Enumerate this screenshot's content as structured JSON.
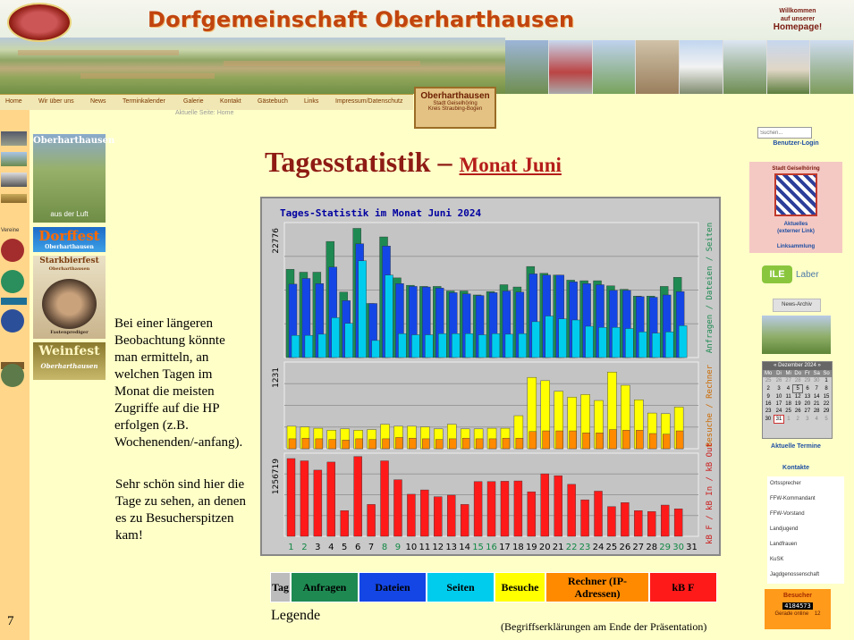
{
  "header": {
    "title": "Dorfgemeinschaft Oberharthausen",
    "welcome_line1": "Willkommen",
    "welcome_line2": "auf unserer",
    "welcome_line3": "Homepage!",
    "logo_text": "Dorfgemeinschaft Oberharthausen"
  },
  "nav": {
    "items": [
      "Home",
      "Wir über uns",
      "News",
      "Terminkalender",
      "Galerie",
      "Kontakt",
      "Gästebuch",
      "Links",
      "Impressum/Datenschutz"
    ],
    "breadcrumb": "Aktuelle Seite: Home"
  },
  "badge": {
    "name": "Oberharthausen",
    "line2": "Stadt Geiselhöring",
    "line3": "Kreis Straubing-Bogen"
  },
  "left_sidebar": {
    "label": "Vereine"
  },
  "banners": {
    "luft_title": "Oberharthausen",
    "luft_sub": "aus der Luft",
    "dorffest": "Dorffest",
    "dorffest_sub": "Oberharthausen",
    "starkbier": "Starkbierfest",
    "starkbier_sub": "Oberharthausen",
    "fasten": "Fastenprediger",
    "weinfest": "Weinfest",
    "weinfest_sub": "Oberharthausen"
  },
  "slide": {
    "heading": "Tagesstatistik –",
    "heading_sub": "Monat Juni",
    "para1": [
      "Bei einer längeren",
      "Beobachtung könnte",
      "man ermitteln, an",
      "welchen Tagen im",
      "Monat die meisten",
      "Zugriffe auf die HP",
      "erfolgen (z.B.",
      "Wochenenden/-anfang)."
    ],
    "para2": [
      "Sehr schön sind hier die",
      "Tage zu sehen, an denen",
      "es zu Besucherspitzen",
      "kam!"
    ],
    "legend_label": "Legende",
    "footnote": "(Begriffserklärungen am Ende der Präsentation)",
    "page_number": "7"
  },
  "legend": [
    {
      "label": "Tag",
      "color": "#bcbcbc",
      "text_color": "#000000"
    },
    {
      "label": "Anfragen",
      "color": "#1e8a52",
      "text_color": "#000000"
    },
    {
      "label": "Dateien",
      "color": "#1446e6",
      "text_color": "#000000"
    },
    {
      "label": "Seiten",
      "color": "#00ccee",
      "text_color": "#000000"
    },
    {
      "label": "Besuche",
      "color": "#ffff00",
      "text_color": "#000000"
    },
    {
      "label": "Rechner (IP-Adressen)",
      "color": "#ff8a00",
      "text_color": "#000000"
    },
    {
      "label": "kB F",
      "color": "#ff1a1a",
      "text_color": "#000000"
    }
  ],
  "chart_data": {
    "type": "bar",
    "title": "Tages-Statistik im Monat Juni 2024",
    "categories": [
      "1",
      "2",
      "3",
      "4",
      "5",
      "6",
      "7",
      "8",
      "9",
      "10",
      "11",
      "12",
      "13",
      "14",
      "15",
      "16",
      "17",
      "18",
      "19",
      "20",
      "21",
      "22",
      "23",
      "24",
      "25",
      "26",
      "27",
      "28",
      "29",
      "30",
      "31"
    ],
    "weekend_days": [
      "1",
      "2",
      "8",
      "9",
      "15",
      "16",
      "22",
      "23",
      "29",
      "30"
    ],
    "panel_top_max": 22776,
    "panel_mid_max": 1231,
    "panel_bot_max": 1256719,
    "right_axis_label_top": "Anfragen / Dateien / Seiten",
    "right_axis_label_mid": "Besuche / Rechner",
    "right_axis_label_bot": "kB F / kB In / kB Out",
    "series": [
      {
        "name": "Anfragen",
        "color": "#1e8a52",
        "values": [
          15500,
          15000,
          15000,
          20400,
          11500,
          22700,
          9500,
          21200,
          14000,
          12700,
          12500,
          12500,
          11700,
          11700,
          11000,
          11600,
          12800,
          12400,
          16000,
          14800,
          14500,
          13600,
          13500,
          13500,
          12600,
          12000,
          10800,
          10800,
          12500,
          14100,
          0
        ]
      },
      {
        "name": "Dateien",
        "color": "#1446e6",
        "values": [
          12900,
          13900,
          13000,
          15900,
          10000,
          20000,
          9500,
          19600,
          13000,
          12500,
          12400,
          12200,
          11400,
          11200,
          10900,
          11400,
          11700,
          11500,
          14700,
          14500,
          14500,
          13300,
          13000,
          12800,
          11800,
          11800,
          10700,
          10600,
          11000,
          11600,
          0
        ]
      },
      {
        "name": "Seiten",
        "color": "#00ccee",
        "values": [
          3900,
          3900,
          4100,
          7000,
          6000,
          17000,
          3000,
          14500,
          4200,
          4000,
          4000,
          4200,
          4200,
          4200,
          4000,
          4200,
          4100,
          4200,
          6300,
          7300,
          6800,
          6600,
          5500,
          5300,
          5300,
          5100,
          4500,
          4300,
          4500,
          5600,
          0
        ]
      },
      {
        "name": "Besuche",
        "color": "#ffff00",
        "values": [
          340,
          330,
          310,
          280,
          300,
          280,
          290,
          370,
          340,
          340,
          330,
          300,
          370,
          300,
          300,
          310,
          310,
          500,
          1080,
          1030,
          870,
          780,
          820,
          730,
          1160,
          960,
          740,
          540,
          530,
          630,
          0
        ]
      },
      {
        "name": "Rechner",
        "color": "#ff8a00",
        "values": [
          150,
          160,
          150,
          140,
          130,
          150,
          140,
          150,
          170,
          160,
          150,
          140,
          150,
          160,
          150,
          150,
          160,
          160,
          260,
          270,
          270,
          270,
          240,
          240,
          290,
          280,
          280,
          230,
          220,
          270,
          0
        ]
      },
      {
        "name": "kB F",
        "color": "#ff1a1a",
        "values": [
          1256719,
          1220000,
          1070000,
          1200000,
          415000,
          1290000,
          515000,
          1220000,
          915000,
          680000,
          750000,
          640000,
          665000,
          515000,
          885000,
          885000,
          890000,
          895000,
          720000,
          1010000,
          980000,
          840000,
          590000,
          730000,
          480000,
          545000,
          415000,
          400000,
          505000,
          445000,
          0
        ]
      }
    ]
  },
  "right_sidebar": {
    "search_placeholder": "Suchen...",
    "login": "Benutzer-Login",
    "stadt_title": "Stadt Geiselhöring",
    "aktuelles": "Aktuelles",
    "extern": "(externer Link)",
    "linksammlung": "Linksammlung",
    "ile": "ILE",
    "laber": "Laber",
    "news_archiv": "News-Archiv",
    "calendar_title": "Dezember 2024",
    "calendar_days": [
      "Mo",
      "Di",
      "Mi",
      "Do",
      "Fr",
      "Sa",
      "So"
    ],
    "calendar_rows": [
      [
        "25",
        "26",
        "27",
        "28",
        "29",
        "30",
        "1"
      ],
      [
        "2",
        "3",
        "4",
        "5",
        "6",
        "7",
        "8"
      ],
      [
        "9",
        "10",
        "11",
        "12",
        "13",
        "14",
        "15"
      ],
      [
        "16",
        "17",
        "18",
        "19",
        "20",
        "21",
        "22"
      ],
      [
        "23",
        "24",
        "25",
        "26",
        "27",
        "28",
        "29"
      ],
      [
        "30",
        "31",
        "1",
        "2",
        "3",
        "4",
        "5"
      ]
    ],
    "aktuelle_termine": "Aktuelle Termine",
    "kontakte": "Kontakte",
    "contacts": [
      "Ortssprecher",
      "FFW-Kommandant",
      "FFW-Vorstand",
      "Landjugend",
      "Landfrauen",
      "KuSK",
      "Jagdgenossenschaft"
    ],
    "besucher": "Besucher",
    "counter": "4184573",
    "online_label": "Gerade online",
    "online_count": "12"
  }
}
